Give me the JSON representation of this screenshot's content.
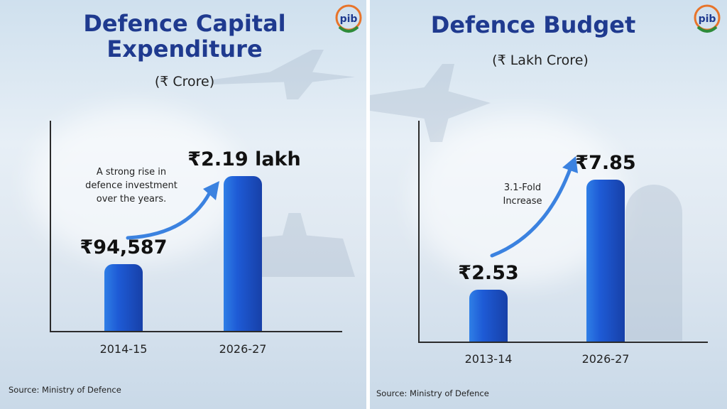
{
  "chart_data": [
    {
      "type": "bar",
      "title": "Defence Capital Expenditure",
      "subtitle": "(₹ Crore)",
      "categories": [
        "2014-15",
        "2026-27"
      ],
      "values": [
        94587,
        219000
      ],
      "value_labels": [
        "₹94,587",
        "₹2.19 lakh"
      ],
      "annotation": "A strong rise in defence investment over the years.",
      "source": "Source: Ministry of Defence",
      "ylim": [
        0,
        300000
      ],
      "colors": {
        "bar": "#1e5bd6",
        "title": "#1f3a8f",
        "arrow": "#3b82e0"
      }
    },
    {
      "type": "bar",
      "title": "Defence Budget",
      "subtitle": "(₹ Lakh Crore)",
      "categories": [
        "2013-14",
        "2026-27"
      ],
      "values": [
        2.53,
        7.85
      ],
      "value_labels": [
        "₹2.53",
        "₹7.85"
      ],
      "annotation": "3.1-Fold Increase",
      "source": "Source: Ministry of Defence",
      "ylim": [
        0,
        10.8
      ],
      "colors": {
        "bar": "#1e5bd6",
        "title": "#1f3a8f",
        "arrow": "#3b82e0"
      }
    }
  ],
  "logo": {
    "text": "pib",
    "icon": "pib-logo-icon"
  }
}
